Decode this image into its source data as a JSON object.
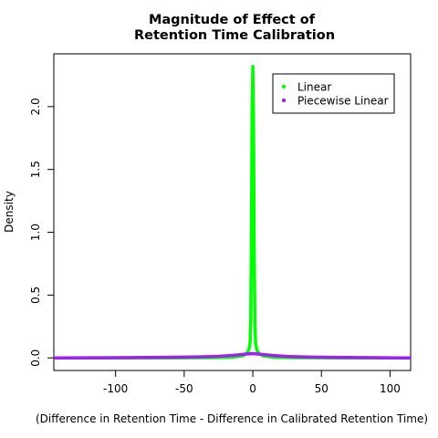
{
  "chart_data": {
    "type": "line",
    "title_line1": "Magnitude of Effect of",
    "title_line2": "Retention Time Calibration",
    "xlabel": "(Difference in Retention Time - Difference in Calibrated Retention Time)",
    "ylabel": "Density",
    "xlim": [
      -145,
      115
    ],
    "ylim": [
      -0.1,
      2.42
    ],
    "x_ticks": [
      -100,
      -50,
      0,
      50,
      100
    ],
    "x_tick_labels": [
      "-100",
      "-50",
      "0",
      "50",
      "100"
    ],
    "y_ticks": [
      0.0,
      0.5,
      1.0,
      1.5,
      2.0
    ],
    "y_tick_labels": [
      "0.0",
      "0.5",
      "1.0",
      "1.5",
      "2.0"
    ],
    "legend_position": "top-right",
    "series": [
      {
        "name": "Linear",
        "color": "#00ff00",
        "x": [
          -145,
          -60,
          -30,
          -15,
          -8,
          -5,
          -3,
          -2,
          -1.5,
          -1,
          -0.5,
          0,
          0.5,
          1,
          1.5,
          2,
          3,
          5,
          8,
          15,
          30,
          60,
          115
        ],
        "y": [
          0,
          0,
          0.002,
          0.005,
          0.015,
          0.03,
          0.06,
          0.12,
          0.3,
          1.0,
          2.0,
          2.32,
          1.9,
          0.9,
          0.28,
          0.12,
          0.06,
          0.03,
          0.015,
          0.005,
          0.002,
          0,
          0
        ]
      },
      {
        "name": "Piecewise Linear",
        "color": "#a020f0",
        "x": [
          -145,
          -100,
          -60,
          -40,
          -25,
          -15,
          -8,
          -4,
          0,
          4,
          8,
          15,
          25,
          40,
          60,
          100,
          115
        ],
        "y": [
          0.0,
          0.002,
          0.005,
          0.008,
          0.013,
          0.02,
          0.027,
          0.032,
          0.034,
          0.031,
          0.026,
          0.019,
          0.012,
          0.007,
          0.004,
          0.001,
          0.0
        ]
      }
    ]
  }
}
